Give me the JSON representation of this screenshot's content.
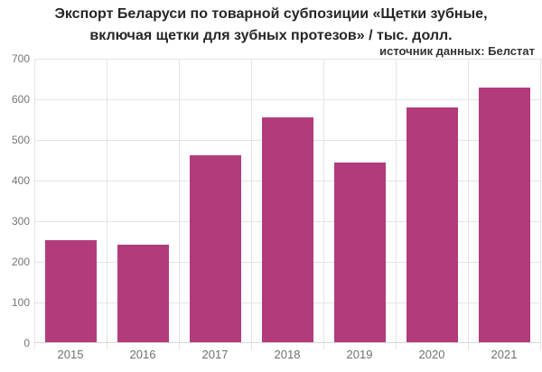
{
  "title": {
    "line1": "Экспорт Беларуси по товарной субпозиции «Щетки зубные,",
    "line2": "включая щетки для зубных протезов» / тыс. долл."
  },
  "source_note": "источник данных: Белстат",
  "chart_data": {
    "type": "bar",
    "title": "Экспорт Беларуси по товарной субпозиции «Щетки зубные, включая щетки для зубных протезов» / тыс. долл.",
    "subtitle": "источник данных: Белстат",
    "categories": [
      "2015",
      "2016",
      "2017",
      "2018",
      "2019",
      "2020",
      "2021"
    ],
    "values": [
      252,
      241,
      461,
      554,
      442,
      578,
      626
    ],
    "xlabel": "",
    "ylabel": "",
    "ylim": [
      0,
      700
    ],
    "yticks": [
      0,
      100,
      200,
      300,
      400,
      500,
      600,
      700
    ],
    "grid": true,
    "legend": "none"
  },
  "colors": {
    "bar": "#b23b7b",
    "grid": "#e4e4e4",
    "axis_line": "#d6d6d6",
    "axis_text": "#757575",
    "title_text": "#262626"
  }
}
